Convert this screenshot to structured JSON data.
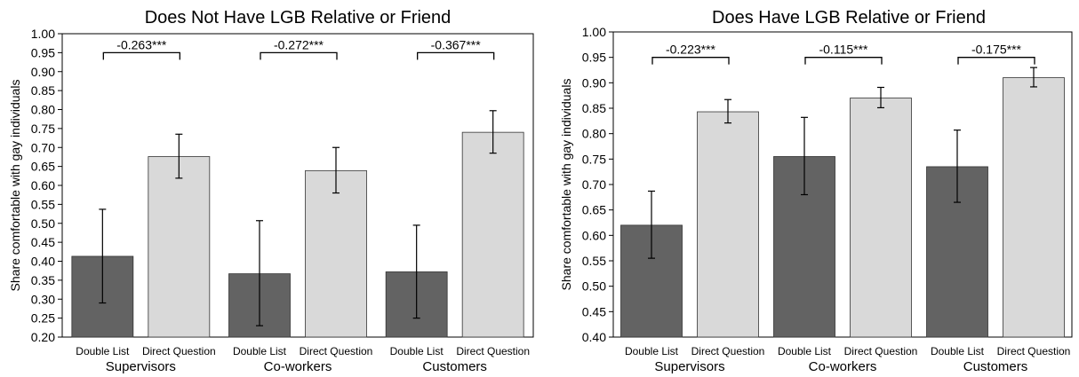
{
  "colors": {
    "double_list": "#636363",
    "direct_question": "#d9d9d9",
    "axis": "#000000",
    "bar_edge": "#333333"
  },
  "chart_data": [
    {
      "type": "bar",
      "title": "Does Not Have LGB Relative or Friend",
      "ylabel": "Share comfortable with gay individuals",
      "xlabel": "",
      "ylim": [
        0.2,
        1.0
      ],
      "yticks": [
        "0.20",
        "0.25",
        "0.30",
        "0.35",
        "0.40",
        "0.45",
        "0.50",
        "0.55",
        "0.60",
        "0.65",
        "0.70",
        "0.75",
        "0.80",
        "0.85",
        "0.90",
        "0.95",
        "1.00"
      ],
      "grid": false,
      "legend": "none",
      "bar_labels": [
        "Double List",
        "Direct Question"
      ],
      "groups": [
        {
          "name": "Supervisors",
          "annotation": "-0.263***",
          "bars": [
            {
              "label": "Double List",
              "value": 0.413,
              "ci": [
                0.29,
                0.537
              ]
            },
            {
              "label": "Direct Question",
              "value": 0.676,
              "ci": [
                0.619,
                0.735
              ]
            }
          ]
        },
        {
          "name": "Co-workers",
          "annotation": "-0.272***",
          "bars": [
            {
              "label": "Double List",
              "value": 0.367,
              "ci": [
                0.23,
                0.507
              ]
            },
            {
              "label": "Direct Question",
              "value": 0.639,
              "ci": [
                0.58,
                0.7
              ]
            }
          ]
        },
        {
          "name": "Customers",
          "annotation": "-0.367***",
          "bars": [
            {
              "label": "Double List",
              "value": 0.372,
              "ci": [
                0.25,
                0.495
              ]
            },
            {
              "label": "Direct Question",
              "value": 0.74,
              "ci": [
                0.685,
                0.797
              ]
            }
          ]
        }
      ]
    },
    {
      "type": "bar",
      "title": "Does Have LGB Relative or Friend",
      "ylabel": "Share comfortable with gay individuals",
      "xlabel": "",
      "ylim": [
        0.4,
        1.0
      ],
      "yticks": [
        "0.40",
        "0.45",
        "0.50",
        "0.55",
        "0.60",
        "0.65",
        "0.70",
        "0.75",
        "0.80",
        "0.85",
        "0.90",
        "0.95",
        "1.00"
      ],
      "grid": false,
      "legend": "none",
      "bar_labels": [
        "Double List",
        "Direct Question"
      ],
      "groups": [
        {
          "name": "Supervisors",
          "annotation": "-0.223***",
          "bars": [
            {
              "label": "Double List",
              "value": 0.62,
              "ci": [
                0.555,
                0.687
              ]
            },
            {
              "label": "Direct Question",
              "value": 0.843,
              "ci": [
                0.821,
                0.867
              ]
            }
          ]
        },
        {
          "name": "Co-workers",
          "annotation": "-0.115***",
          "bars": [
            {
              "label": "Double List",
              "value": 0.755,
              "ci": [
                0.68,
                0.832
              ]
            },
            {
              "label": "Direct Question",
              "value": 0.87,
              "ci": [
                0.851,
                0.891
              ]
            }
          ]
        },
        {
          "name": "Customers",
          "annotation": "-0.175***",
          "bars": [
            {
              "label": "Double List",
              "value": 0.735,
              "ci": [
                0.665,
                0.807
              ]
            },
            {
              "label": "Direct Question",
              "value": 0.91,
              "ci": [
                0.892,
                0.93
              ]
            }
          ]
        }
      ]
    }
  ]
}
